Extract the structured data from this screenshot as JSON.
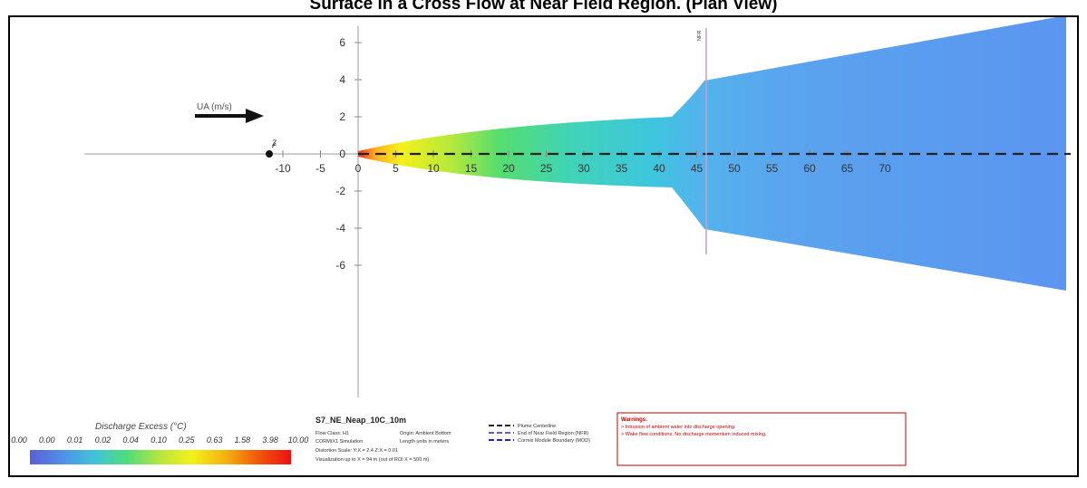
{
  "title": "Surface in a Cross Flow at Near Field Region. (Plan View)",
  "axes": {
    "x_ticks": [
      "-10",
      "-5",
      "0",
      "5",
      "10",
      "15",
      "20",
      "25",
      "30",
      "35",
      "40",
      "45",
      "50",
      "55",
      "60",
      "65",
      "70"
    ],
    "y_ticks": [
      "6",
      "4",
      "2",
      "0",
      "-2",
      "-4",
      "-6"
    ],
    "origin_marker": "Z",
    "nfr_label": "NFR"
  },
  "ambient": {
    "label": "UA (m/s)"
  },
  "colorbar": {
    "title": "Discharge Excess  (°C)",
    "values": [
      "0.00",
      "0.00",
      "0.01",
      "0.02",
      "0.04",
      "0.10",
      "0.25",
      "0.63",
      "1.58",
      "3.98",
      "10.00"
    ],
    "gradient": [
      "#5b5fd6",
      "#4f8fe8",
      "#42c4d8",
      "#4ddc7a",
      "#b8e63c",
      "#f2f21a",
      "#f5b20f",
      "#f25a0a",
      "#ee1010"
    ]
  },
  "case_info": {
    "name": "S7_NE_Neap_10C_10m",
    "rows": [
      [
        "Flow Class: H1",
        "Origin: Ambient Bottom"
      ],
      [
        "CORMIX1 Simulation",
        "Length units in meters"
      ],
      [
        "Distortion Scale:  Y:X = 2.4    Z:X = 0.01",
        ""
      ]
    ],
    "footer": "Visualization up to X = 94 m (out of ROI X = 500 m)"
  },
  "legend": [
    {
      "label": "Plume Centerline",
      "color": "#222222"
    },
    {
      "label": "End of Near Field Region (NFR)",
      "color": "#6a5acd"
    },
    {
      "label": "Cormix Module Boundary (MOD)",
      "color": "#2222dd"
    }
  ],
  "warnings": {
    "title": "Warnings:",
    "items": [
      "> Intrusion of ambient water into discharge opening.",
      "> Wake flow conditions. No discharge momentum induced mixing."
    ]
  }
}
